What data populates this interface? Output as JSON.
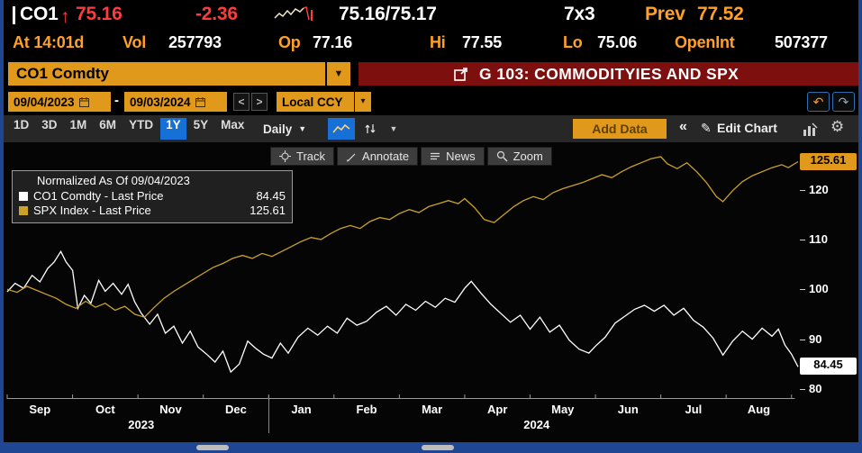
{
  "quote": {
    "ticker": "CO1",
    "direction_arrow": "↑",
    "last_price": "75.16",
    "change": "-2.36",
    "bid_ask": "75.16/75.17",
    "lot_size": "7x3",
    "prev_label": "Prev",
    "prev_close": "77.52",
    "time": "At 14:01d",
    "vol_label": "Vol",
    "volume": "257793",
    "open_label": "Op",
    "open": "77.16",
    "high_label": "Hi",
    "high": "77.55",
    "low_label": "Lo",
    "low": "75.06",
    "openint_label": "OpenInt",
    "open_interest": "507377"
  },
  "security_bar": {
    "security": "CO1 Comdty",
    "chart_title": "G 103: COMMODITYIES AND SPX"
  },
  "date_bar": {
    "start_date": "09/04/2023",
    "separator": "-",
    "end_date": "09/03/2024",
    "prev": "<",
    "next": ">",
    "currency": "Local CCY"
  },
  "toolbar": {
    "ranges": [
      "1D",
      "3D",
      "1M",
      "6M",
      "YTD",
      "1Y",
      "5Y",
      "Max"
    ],
    "active_range": "1Y",
    "period": "Daily",
    "add_data": "Add Data",
    "collapse": "«",
    "edit_chart_label": "Edit Chart"
  },
  "chart_tools": [
    {
      "icon": "track-icon",
      "label": "Track"
    },
    {
      "icon": "annotate-icon",
      "label": "Annotate"
    },
    {
      "icon": "news-icon",
      "label": "News"
    },
    {
      "icon": "zoom-icon",
      "label": "Zoom"
    }
  ],
  "legend": {
    "title": "Normalized As Of 09/04/2023",
    "items": [
      {
        "swatch": "#ffffff",
        "label": "CO1 Comdty - Last Price",
        "value": "84.45"
      },
      {
        "swatch": "#c9a227",
        "label": "SPX Index - Last Price",
        "value": "125.61"
      }
    ]
  },
  "chart_data": {
    "type": "line",
    "title": "Normalized As Of 09/04/2023",
    "grid": false,
    "legend_position": "top-left",
    "x_max": 12.1,
    "months": [
      "Sep",
      "Oct",
      "Nov",
      "Dec",
      "Jan",
      "Feb",
      "Mar",
      "Apr",
      "May",
      "Jun",
      "Jul",
      "Aug"
    ],
    "years": [
      {
        "label": "2023",
        "x": 2.05
      },
      {
        "label": "2024",
        "x": 8.1
      }
    ],
    "y_min": 78,
    "y_max": 129.5,
    "y_ticks": [
      120,
      110,
      100,
      90,
      80
    ],
    "badges": [
      {
        "value": 125.61,
        "bg": "#e0991a",
        "fg": "#000000"
      },
      {
        "value": 84.45,
        "bg": "#ffffff",
        "fg": "#000000"
      }
    ],
    "series": [
      {
        "name": "CO1 Comdty",
        "color": "#ffffff",
        "last": 84.45,
        "points": [
          [
            0,
            99.5
          ],
          [
            0.12,
            101.2
          ],
          [
            0.25,
            100.2
          ],
          [
            0.38,
            102.8
          ],
          [
            0.5,
            101.5
          ],
          [
            0.62,
            104.2
          ],
          [
            0.72,
            105.5
          ],
          [
            0.82,
            107.6
          ],
          [
            0.9,
            105.5
          ],
          [
            1.0,
            103.8
          ],
          [
            1.08,
            96.2
          ],
          [
            1.18,
            98.8
          ],
          [
            1.28,
            97.2
          ],
          [
            1.4,
            101.8
          ],
          [
            1.5,
            99.6
          ],
          [
            1.62,
            101.2
          ],
          [
            1.75,
            99.0
          ],
          [
            1.85,
            101.0
          ],
          [
            1.95,
            97.5
          ],
          [
            2.05,
            95.2
          ],
          [
            2.18,
            93.0
          ],
          [
            2.3,
            95.0
          ],
          [
            2.42,
            91.2
          ],
          [
            2.55,
            92.6
          ],
          [
            2.68,
            89.2
          ],
          [
            2.8,
            91.6
          ],
          [
            2.92,
            88.4
          ],
          [
            3.05,
            87.0
          ],
          [
            3.18,
            85.4
          ],
          [
            3.3,
            87.6
          ],
          [
            3.42,
            83.4
          ],
          [
            3.55,
            85.0
          ],
          [
            3.68,
            89.6
          ],
          [
            3.8,
            88.2
          ],
          [
            3.92,
            87.0
          ],
          [
            4.05,
            86.2
          ],
          [
            4.18,
            89.2
          ],
          [
            4.3,
            87.2
          ],
          [
            4.45,
            90.4
          ],
          [
            4.6,
            92.2
          ],
          [
            4.75,
            90.8
          ],
          [
            4.9,
            92.6
          ],
          [
            5.05,
            91.2
          ],
          [
            5.2,
            94.2
          ],
          [
            5.35,
            92.8
          ],
          [
            5.5,
            93.6
          ],
          [
            5.65,
            95.4
          ],
          [
            5.8,
            96.6
          ],
          [
            5.95,
            94.8
          ],
          [
            6.1,
            97.0
          ],
          [
            6.25,
            95.8
          ],
          [
            6.4,
            97.6
          ],
          [
            6.55,
            96.4
          ],
          [
            6.7,
            98.2
          ],
          [
            6.85,
            97.4
          ],
          [
            7.0,
            100.2
          ],
          [
            7.1,
            101.6
          ],
          [
            7.25,
            99.2
          ],
          [
            7.4,
            97.0
          ],
          [
            7.55,
            95.2
          ],
          [
            7.7,
            93.4
          ],
          [
            7.85,
            94.8
          ],
          [
            8.0,
            92.0
          ],
          [
            8.15,
            94.4
          ],
          [
            8.3,
            91.4
          ],
          [
            8.45,
            92.8
          ],
          [
            8.6,
            89.8
          ],
          [
            8.75,
            88.0
          ],
          [
            8.9,
            87.2
          ],
          [
            9.0,
            88.6
          ],
          [
            9.15,
            90.4
          ],
          [
            9.3,
            93.2
          ],
          [
            9.45,
            94.6
          ],
          [
            9.6,
            96.0
          ],
          [
            9.75,
            96.8
          ],
          [
            9.9,
            95.6
          ],
          [
            10.05,
            96.8
          ],
          [
            10.2,
            94.8
          ],
          [
            10.35,
            96.2
          ],
          [
            10.5,
            93.8
          ],
          [
            10.65,
            92.4
          ],
          [
            10.8,
            90.2
          ],
          [
            10.95,
            86.8
          ],
          [
            11.1,
            89.6
          ],
          [
            11.25,
            91.6
          ],
          [
            11.4,
            90.0
          ],
          [
            11.55,
            92.2
          ],
          [
            11.7,
            90.6
          ],
          [
            11.8,
            92.0
          ],
          [
            11.9,
            88.8
          ],
          [
            12.0,
            87.0
          ],
          [
            12.1,
            84.45
          ]
        ]
      },
      {
        "name": "SPX Index",
        "color": "#c9a227",
        "last": 125.61,
        "points": [
          [
            0,
            100.0
          ],
          [
            0.15,
            99.4
          ],
          [
            0.3,
            100.6
          ],
          [
            0.45,
            99.8
          ],
          [
            0.6,
            99.0
          ],
          [
            0.75,
            98.2
          ],
          [
            0.9,
            97.0
          ],
          [
            1.05,
            96.2
          ],
          [
            1.2,
            97.6
          ],
          [
            1.35,
            96.4
          ],
          [
            1.5,
            97.2
          ],
          [
            1.65,
            95.8
          ],
          [
            1.8,
            96.6
          ],
          [
            1.95,
            95.0
          ],
          [
            2.1,
            94.4
          ],
          [
            2.25,
            96.4
          ],
          [
            2.4,
            98.2
          ],
          [
            2.55,
            99.6
          ],
          [
            2.7,
            100.8
          ],
          [
            2.85,
            102.0
          ],
          [
            3.0,
            103.2
          ],
          [
            3.15,
            104.4
          ],
          [
            3.3,
            105.2
          ],
          [
            3.45,
            106.2
          ],
          [
            3.6,
            106.8
          ],
          [
            3.75,
            106.2
          ],
          [
            3.9,
            107.2
          ],
          [
            4.05,
            106.6
          ],
          [
            4.2,
            107.6
          ],
          [
            4.35,
            108.6
          ],
          [
            4.5,
            109.6
          ],
          [
            4.65,
            110.4
          ],
          [
            4.8,
            110.0
          ],
          [
            4.95,
            111.2
          ],
          [
            5.1,
            112.2
          ],
          [
            5.25,
            112.8
          ],
          [
            5.4,
            112.2
          ],
          [
            5.55,
            113.6
          ],
          [
            5.7,
            114.4
          ],
          [
            5.85,
            114.0
          ],
          [
            6.0,
            115.2
          ],
          [
            6.15,
            116.0
          ],
          [
            6.3,
            115.4
          ],
          [
            6.45,
            116.6
          ],
          [
            6.6,
            117.2
          ],
          [
            6.75,
            117.8
          ],
          [
            6.9,
            117.2
          ],
          [
            7.0,
            118.2
          ],
          [
            7.15,
            116.4
          ],
          [
            7.3,
            114.0
          ],
          [
            7.45,
            113.4
          ],
          [
            7.6,
            115.0
          ],
          [
            7.75,
            116.6
          ],
          [
            7.9,
            117.8
          ],
          [
            8.05,
            118.6
          ],
          [
            8.2,
            118.0
          ],
          [
            8.35,
            119.4
          ],
          [
            8.5,
            120.2
          ],
          [
            8.65,
            120.8
          ],
          [
            8.8,
            121.4
          ],
          [
            8.95,
            122.2
          ],
          [
            9.1,
            123.0
          ],
          [
            9.25,
            122.4
          ],
          [
            9.4,
            123.6
          ],
          [
            9.55,
            124.6
          ],
          [
            9.7,
            125.4
          ],
          [
            9.85,
            126.2
          ],
          [
            10.0,
            126.6
          ],
          [
            10.1,
            125.2
          ],
          [
            10.25,
            124.2
          ],
          [
            10.4,
            125.4
          ],
          [
            10.55,
            123.6
          ],
          [
            10.7,
            121.4
          ],
          [
            10.85,
            118.6
          ],
          [
            10.95,
            117.6
          ],
          [
            11.1,
            119.8
          ],
          [
            11.25,
            121.6
          ],
          [
            11.4,
            122.8
          ],
          [
            11.55,
            123.6
          ],
          [
            11.7,
            124.4
          ],
          [
            11.85,
            125.0
          ],
          [
            11.95,
            124.4
          ],
          [
            12.1,
            125.61
          ]
        ]
      }
    ]
  }
}
